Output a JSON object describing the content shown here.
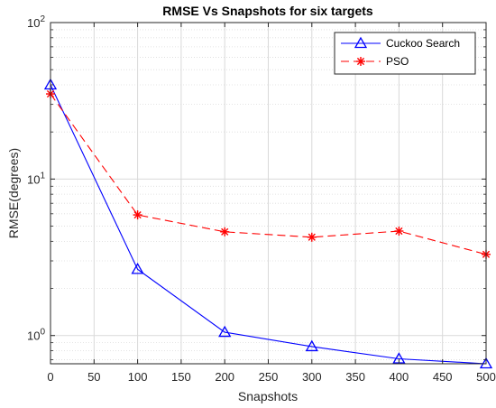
{
  "chart_data": {
    "type": "line",
    "title": "RMSE Vs Snapshots for six targets",
    "xlabel": "Snapshots",
    "ylabel": "RMSE(degrees)",
    "x": [
      0,
      100,
      200,
      300,
      400,
      500
    ],
    "xlim": [
      0,
      500
    ],
    "xticks": [
      0,
      50,
      100,
      150,
      200,
      250,
      300,
      350,
      400,
      450,
      500
    ],
    "xtick_labels": [
      "0",
      "50",
      "100",
      "150",
      "200",
      "250",
      "300",
      "350",
      "400",
      "450",
      "500"
    ],
    "ylim": [
      0.66,
      100
    ],
    "yscale": "log",
    "yticks": [
      1,
      10,
      100
    ],
    "ytick_labels": [
      {
        "base": "10",
        "exp": "0"
      },
      {
        "base": "10",
        "exp": "1"
      },
      {
        "base": "10",
        "exp": "2"
      }
    ],
    "grid": true,
    "minor_grid": true,
    "legend_position": "top-right",
    "series": [
      {
        "name": "Cuckoo Search",
        "values": [
          40,
          2.65,
          1.05,
          0.85,
          0.71,
          0.66
        ],
        "color": "#0000ff",
        "line_style": "solid",
        "marker": "triangle"
      },
      {
        "name": "PSO",
        "values": [
          35,
          5.9,
          4.6,
          4.25,
          4.65,
          3.3
        ],
        "color": "#ff0000",
        "line_style": "dashed",
        "marker": "asterisk"
      }
    ]
  }
}
